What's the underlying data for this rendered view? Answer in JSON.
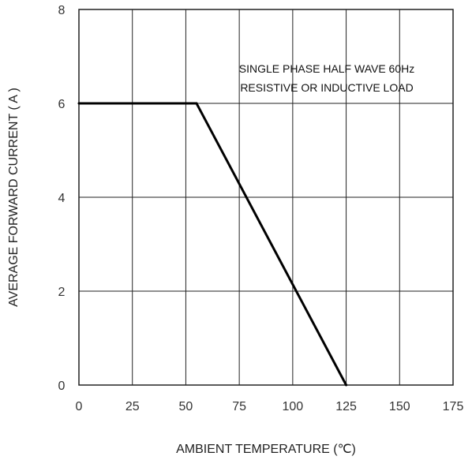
{
  "chart_data": {
    "type": "line",
    "title": "",
    "xlabel": "AMBIENT TEMPERATURE (℃)",
    "ylabel": "AVERAGE FORWARD CURRENT ( A )",
    "xlim": [
      0,
      175
    ],
    "ylim": [
      0,
      8
    ],
    "xticks": [
      0,
      25,
      50,
      75,
      100,
      125,
      150,
      175
    ],
    "yticks": [
      0,
      2,
      4,
      6,
      8
    ],
    "grid": true,
    "annotation_lines": [
      "SINGLE PHASE HALF WAVE 60Hz",
      "RESISTIVE OR INDUCTIVE LOAD"
    ],
    "series": [
      {
        "x": [
          0,
          55,
          125
        ],
        "y": [
          6,
          6,
          0
        ]
      }
    ]
  },
  "colors": {
    "line": "#000000",
    "grid": "#222222",
    "frame": "#222222"
  }
}
